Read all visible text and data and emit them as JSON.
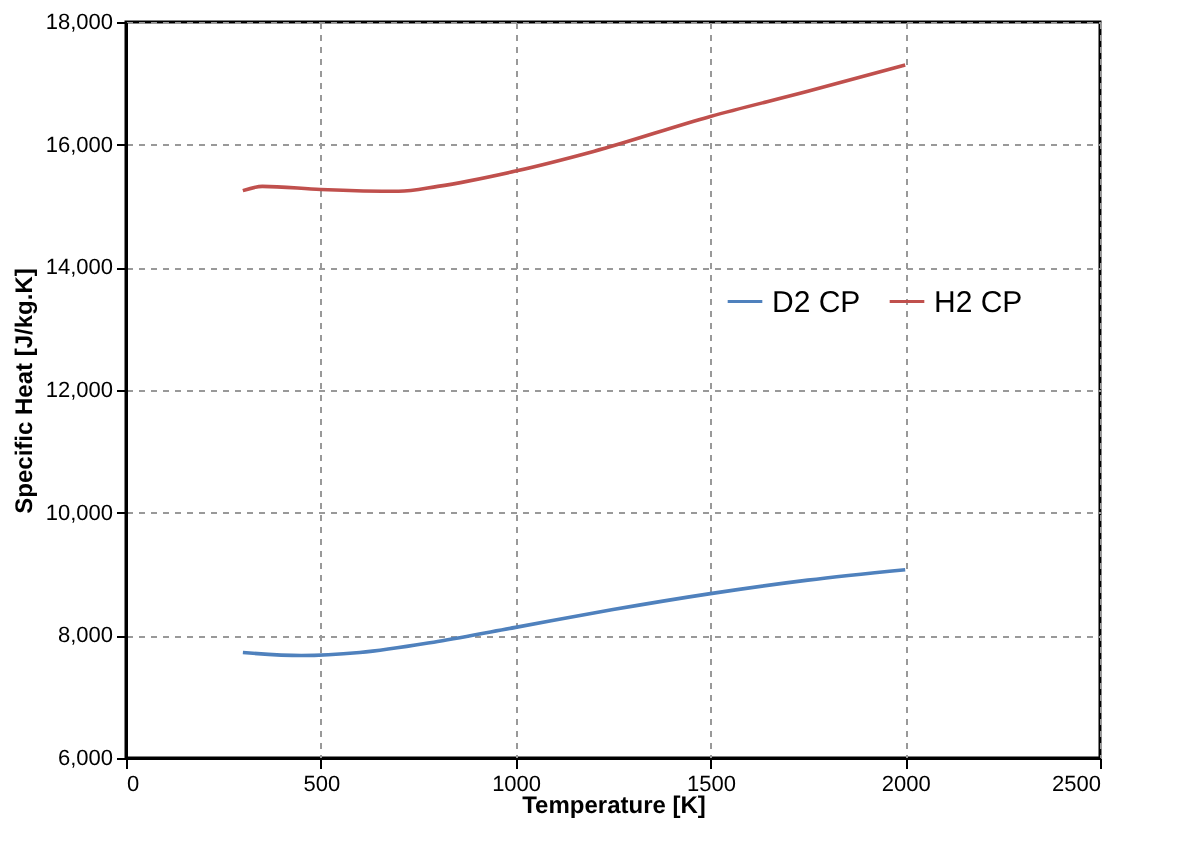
{
  "chart_data": {
    "type": "line",
    "xlabel": "Temperature [K]",
    "ylabel": "Specific Heat [J/kg.K]",
    "xlim": [
      0,
      2500
    ],
    "xticks": [
      0,
      500,
      1000,
      1500,
      2000,
      2500
    ],
    "ylim": [
      6000,
      18000
    ],
    "yticks": [
      {
        "value": 6000,
        "label": "6,000"
      },
      {
        "value": 8000,
        "label": "8,000"
      },
      {
        "value": 10000,
        "label": "10,000"
      },
      {
        "value": 12000,
        "label": "12,000"
      },
      {
        "value": 14000,
        "label": "14,000"
      },
      {
        "value": 16000,
        "label": "16,000"
      },
      {
        "value": 18000,
        "label": "18,000"
      }
    ],
    "grid": true,
    "legend": "right",
    "line_style": "solid",
    "marker": "none",
    "series": [
      {
        "name": "D2 CP",
        "color": "#4f81bd",
        "x": [
          300,
          450,
          600,
          800,
          1000,
          1250,
          1500,
          1750,
          2000
        ],
        "values": [
          7720,
          7670,
          7720,
          7900,
          8130,
          8420,
          8680,
          8900,
          9070
        ]
      },
      {
        "name": "H2 CP",
        "color": "#c0504d",
        "x": [
          300,
          350,
          500,
          700,
          800,
          1000,
          1200,
          1500,
          1750,
          2000
        ],
        "values": [
          15250,
          15320,
          15270,
          15240,
          15320,
          15570,
          15890,
          16460,
          16870,
          17300
        ]
      }
    ]
  }
}
